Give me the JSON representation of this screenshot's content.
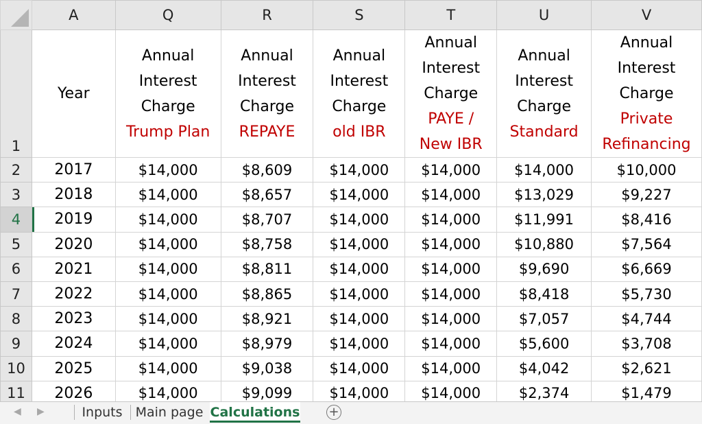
{
  "columns": {
    "corner": "",
    "a": "A",
    "q": "Q",
    "r": "R",
    "s": "S",
    "t": "T",
    "u": "U",
    "v": "V"
  },
  "header_row": {
    "row_label": "1",
    "year": "Year",
    "common": [
      "Annual",
      "Interest",
      "Charge"
    ],
    "plans": {
      "q": [
        "Trump Plan"
      ],
      "r": [
        "REPAYE"
      ],
      "s": [
        "old IBR"
      ],
      "t": [
        "PAYE /",
        "New IBR"
      ],
      "u": [
        "Standard"
      ],
      "v": [
        "Private",
        "Refinancing"
      ]
    }
  },
  "rows": [
    {
      "row": "2",
      "year": "2017",
      "q": "$14,000",
      "r": "$8,609",
      "s": "$14,000",
      "t": "$14,000",
      "u": "$14,000",
      "v": "$10,000"
    },
    {
      "row": "3",
      "year": "2018",
      "q": "$14,000",
      "r": "$8,657",
      "s": "$14,000",
      "t": "$14,000",
      "u": "$13,029",
      "v": "$9,227"
    },
    {
      "row": "4",
      "year": "2019",
      "q": "$14,000",
      "r": "$8,707",
      "s": "$14,000",
      "t": "$14,000",
      "u": "$11,991",
      "v": "$8,416"
    },
    {
      "row": "5",
      "year": "2020",
      "q": "$14,000",
      "r": "$8,758",
      "s": "$14,000",
      "t": "$14,000",
      "u": "$10,880",
      "v": "$7,564"
    },
    {
      "row": "6",
      "year": "2021",
      "q": "$14,000",
      "r": "$8,811",
      "s": "$14,000",
      "t": "$14,000",
      "u": "$9,690",
      "v": "$6,669"
    },
    {
      "row": "7",
      "year": "2022",
      "q": "$14,000",
      "r": "$8,865",
      "s": "$14,000",
      "t": "$14,000",
      "u": "$8,418",
      "v": "$5,730"
    },
    {
      "row": "8",
      "year": "2023",
      "q": "$14,000",
      "r": "$8,921",
      "s": "$14,000",
      "t": "$14,000",
      "u": "$7,057",
      "v": "$4,744"
    },
    {
      "row": "9",
      "year": "2024",
      "q": "$14,000",
      "r": "$8,979",
      "s": "$14,000",
      "t": "$14,000",
      "u": "$5,600",
      "v": "$3,708"
    },
    {
      "row": "10",
      "year": "2025",
      "q": "$14,000",
      "r": "$9,038",
      "s": "$14,000",
      "t": "$14,000",
      "u": "$4,042",
      "v": "$2,621"
    },
    {
      "row": "11",
      "year": "2026",
      "q": "$14,000",
      "r": "$9,099",
      "s": "$14,000",
      "t": "$14,000",
      "u": "$2,374",
      "v": "$1,479"
    }
  ],
  "selected_row": "4",
  "tabs": {
    "items": [
      "Inputs",
      "Main page",
      "Calculations"
    ],
    "active": "Calculations",
    "add_icon": "plus-circle-icon"
  },
  "colors": {
    "accent": "#217346",
    "plan_label": "#c00000"
  }
}
